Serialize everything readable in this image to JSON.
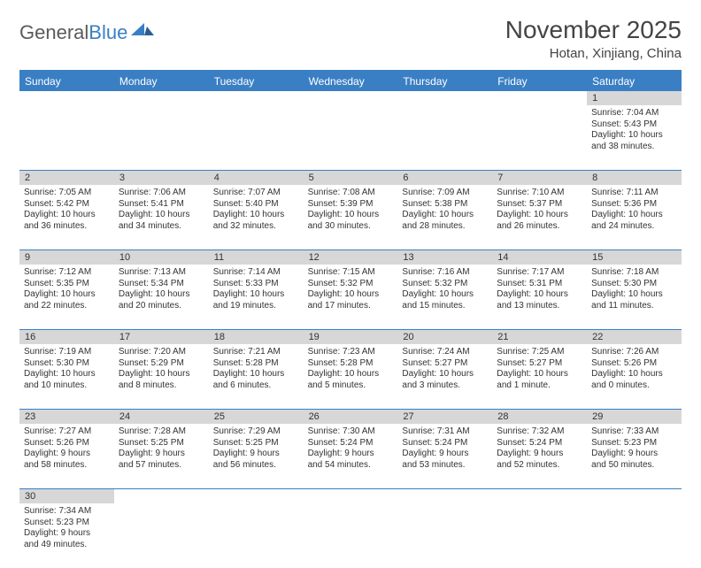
{
  "logo": {
    "general": "General",
    "blue": "Blue"
  },
  "title": "November 2025",
  "location": "Hotan, Xinjiang, China",
  "colors": {
    "accent": "#3a7fc4",
    "daynum_bg": "#d7d7d7",
    "text": "#333333",
    "bg": "#ffffff"
  },
  "weekdays": [
    "Sunday",
    "Monday",
    "Tuesday",
    "Wednesday",
    "Thursday",
    "Friday",
    "Saturday"
  ],
  "weeks": [
    {
      "nums": [
        "",
        "",
        "",
        "",
        "",
        "",
        "1"
      ],
      "cells": [
        null,
        null,
        null,
        null,
        null,
        null,
        {
          "sunrise": "Sunrise: 7:04 AM",
          "sunset": "Sunset: 5:43 PM",
          "day1": "Daylight: 10 hours",
          "day2": "and 38 minutes."
        }
      ]
    },
    {
      "nums": [
        "2",
        "3",
        "4",
        "5",
        "6",
        "7",
        "8"
      ],
      "cells": [
        {
          "sunrise": "Sunrise: 7:05 AM",
          "sunset": "Sunset: 5:42 PM",
          "day1": "Daylight: 10 hours",
          "day2": "and 36 minutes."
        },
        {
          "sunrise": "Sunrise: 7:06 AM",
          "sunset": "Sunset: 5:41 PM",
          "day1": "Daylight: 10 hours",
          "day2": "and 34 minutes."
        },
        {
          "sunrise": "Sunrise: 7:07 AM",
          "sunset": "Sunset: 5:40 PM",
          "day1": "Daylight: 10 hours",
          "day2": "and 32 minutes."
        },
        {
          "sunrise": "Sunrise: 7:08 AM",
          "sunset": "Sunset: 5:39 PM",
          "day1": "Daylight: 10 hours",
          "day2": "and 30 minutes."
        },
        {
          "sunrise": "Sunrise: 7:09 AM",
          "sunset": "Sunset: 5:38 PM",
          "day1": "Daylight: 10 hours",
          "day2": "and 28 minutes."
        },
        {
          "sunrise": "Sunrise: 7:10 AM",
          "sunset": "Sunset: 5:37 PM",
          "day1": "Daylight: 10 hours",
          "day2": "and 26 minutes."
        },
        {
          "sunrise": "Sunrise: 7:11 AM",
          "sunset": "Sunset: 5:36 PM",
          "day1": "Daylight: 10 hours",
          "day2": "and 24 minutes."
        }
      ]
    },
    {
      "nums": [
        "9",
        "10",
        "11",
        "12",
        "13",
        "14",
        "15"
      ],
      "cells": [
        {
          "sunrise": "Sunrise: 7:12 AM",
          "sunset": "Sunset: 5:35 PM",
          "day1": "Daylight: 10 hours",
          "day2": "and 22 minutes."
        },
        {
          "sunrise": "Sunrise: 7:13 AM",
          "sunset": "Sunset: 5:34 PM",
          "day1": "Daylight: 10 hours",
          "day2": "and 20 minutes."
        },
        {
          "sunrise": "Sunrise: 7:14 AM",
          "sunset": "Sunset: 5:33 PM",
          "day1": "Daylight: 10 hours",
          "day2": "and 19 minutes."
        },
        {
          "sunrise": "Sunrise: 7:15 AM",
          "sunset": "Sunset: 5:32 PM",
          "day1": "Daylight: 10 hours",
          "day2": "and 17 minutes."
        },
        {
          "sunrise": "Sunrise: 7:16 AM",
          "sunset": "Sunset: 5:32 PM",
          "day1": "Daylight: 10 hours",
          "day2": "and 15 minutes."
        },
        {
          "sunrise": "Sunrise: 7:17 AM",
          "sunset": "Sunset: 5:31 PM",
          "day1": "Daylight: 10 hours",
          "day2": "and 13 minutes."
        },
        {
          "sunrise": "Sunrise: 7:18 AM",
          "sunset": "Sunset: 5:30 PM",
          "day1": "Daylight: 10 hours",
          "day2": "and 11 minutes."
        }
      ]
    },
    {
      "nums": [
        "16",
        "17",
        "18",
        "19",
        "20",
        "21",
        "22"
      ],
      "cells": [
        {
          "sunrise": "Sunrise: 7:19 AM",
          "sunset": "Sunset: 5:30 PM",
          "day1": "Daylight: 10 hours",
          "day2": "and 10 minutes."
        },
        {
          "sunrise": "Sunrise: 7:20 AM",
          "sunset": "Sunset: 5:29 PM",
          "day1": "Daylight: 10 hours",
          "day2": "and 8 minutes."
        },
        {
          "sunrise": "Sunrise: 7:21 AM",
          "sunset": "Sunset: 5:28 PM",
          "day1": "Daylight: 10 hours",
          "day2": "and 6 minutes."
        },
        {
          "sunrise": "Sunrise: 7:23 AM",
          "sunset": "Sunset: 5:28 PM",
          "day1": "Daylight: 10 hours",
          "day2": "and 5 minutes."
        },
        {
          "sunrise": "Sunrise: 7:24 AM",
          "sunset": "Sunset: 5:27 PM",
          "day1": "Daylight: 10 hours",
          "day2": "and 3 minutes."
        },
        {
          "sunrise": "Sunrise: 7:25 AM",
          "sunset": "Sunset: 5:27 PM",
          "day1": "Daylight: 10 hours",
          "day2": "and 1 minute."
        },
        {
          "sunrise": "Sunrise: 7:26 AM",
          "sunset": "Sunset: 5:26 PM",
          "day1": "Daylight: 10 hours",
          "day2": "and 0 minutes."
        }
      ]
    },
    {
      "nums": [
        "23",
        "24",
        "25",
        "26",
        "27",
        "28",
        "29"
      ],
      "cells": [
        {
          "sunrise": "Sunrise: 7:27 AM",
          "sunset": "Sunset: 5:26 PM",
          "day1": "Daylight: 9 hours",
          "day2": "and 58 minutes."
        },
        {
          "sunrise": "Sunrise: 7:28 AM",
          "sunset": "Sunset: 5:25 PM",
          "day1": "Daylight: 9 hours",
          "day2": "and 57 minutes."
        },
        {
          "sunrise": "Sunrise: 7:29 AM",
          "sunset": "Sunset: 5:25 PM",
          "day1": "Daylight: 9 hours",
          "day2": "and 56 minutes."
        },
        {
          "sunrise": "Sunrise: 7:30 AM",
          "sunset": "Sunset: 5:24 PM",
          "day1": "Daylight: 9 hours",
          "day2": "and 54 minutes."
        },
        {
          "sunrise": "Sunrise: 7:31 AM",
          "sunset": "Sunset: 5:24 PM",
          "day1": "Daylight: 9 hours",
          "day2": "and 53 minutes."
        },
        {
          "sunrise": "Sunrise: 7:32 AM",
          "sunset": "Sunset: 5:24 PM",
          "day1": "Daylight: 9 hours",
          "day2": "and 52 minutes."
        },
        {
          "sunrise": "Sunrise: 7:33 AM",
          "sunset": "Sunset: 5:23 PM",
          "day1": "Daylight: 9 hours",
          "day2": "and 50 minutes."
        }
      ]
    },
    {
      "nums": [
        "30",
        "",
        "",
        "",
        "",
        "",
        ""
      ],
      "cells": [
        {
          "sunrise": "Sunrise: 7:34 AM",
          "sunset": "Sunset: 5:23 PM",
          "day1": "Daylight: 9 hours",
          "day2": "and 49 minutes."
        },
        null,
        null,
        null,
        null,
        null,
        null
      ]
    }
  ]
}
